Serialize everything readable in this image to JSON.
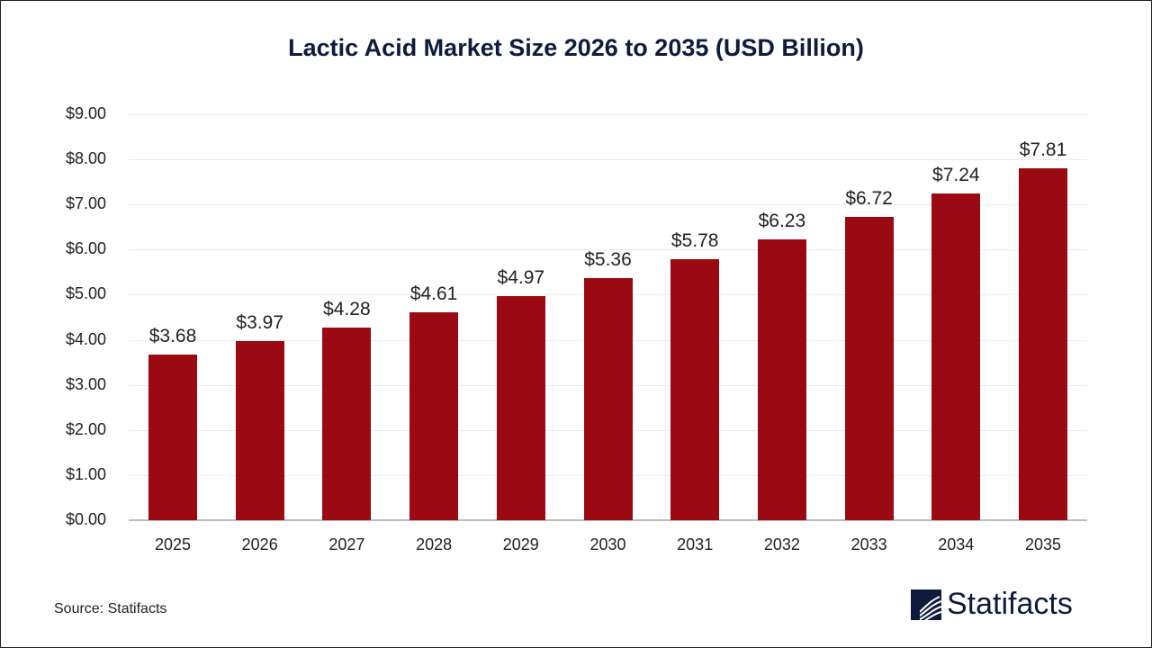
{
  "chart_data": {
    "type": "bar",
    "title": "Lactic Acid Market Size 2026 to 2035 (USD Billion)",
    "xlabel": "",
    "ylabel": "",
    "categories": [
      "2025",
      "2026",
      "2027",
      "2028",
      "2029",
      "2030",
      "2031",
      "2032",
      "2033",
      "2034",
      "2035"
    ],
    "values": [
      3.68,
      3.97,
      4.28,
      4.61,
      4.97,
      5.36,
      5.78,
      6.23,
      6.72,
      7.24,
      7.81
    ],
    "value_labels": [
      "$3.68",
      "$3.97",
      "$4.28",
      "$4.61",
      "$4.97",
      "$5.36",
      "$5.78",
      "$6.23",
      "$6.72",
      "$7.24",
      "$7.81"
    ],
    "ylim": [
      0,
      9
    ],
    "yticks": [
      "$0.00",
      "$1.00",
      "$2.00",
      "$3.00",
      "$4.00",
      "$5.00",
      "$6.00",
      "$7.00",
      "$8.00",
      "$9.00"
    ],
    "grid": true,
    "legend": null,
    "bar_color": "#9b0a12"
  },
  "footer": {
    "source": "Source: Statifacts",
    "logo_text": "Statifacts"
  }
}
